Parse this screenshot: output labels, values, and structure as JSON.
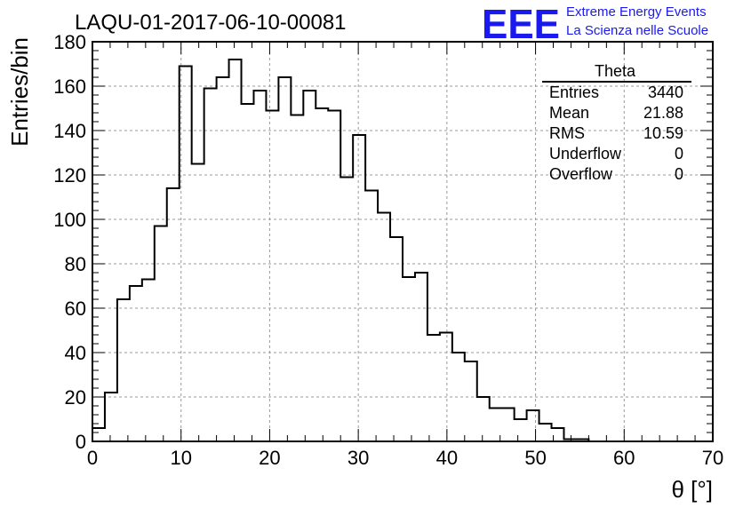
{
  "header": {
    "run_title": "LAQU-01-2017-06-10-00081",
    "logo_letters": "EEE",
    "logo_line1": "Extreme Energy Events",
    "logo_line2": "La Scienza nelle Scuole"
  },
  "stats_box": {
    "title": "Theta",
    "rows": [
      {
        "label": "Entries",
        "value": "3440"
      },
      {
        "label": "Mean",
        "value": "21.88"
      },
      {
        "label": "RMS",
        "value": "10.59"
      },
      {
        "label": "Underflow",
        "value": "0"
      },
      {
        "label": "Overflow",
        "value": "0"
      }
    ]
  },
  "colors": {
    "logo": "#1a1aee",
    "histogram_line": "#000000",
    "grid": "#9a9a9a"
  },
  "chart_data": {
    "type": "bar",
    "subtype": "step-histogram",
    "xlabel": "θ [°]",
    "ylabel": "Entries/bin",
    "xlim": [
      0,
      70
    ],
    "ylim": [
      0,
      180
    ],
    "x_ticks": [
      0,
      10,
      20,
      30,
      40,
      50,
      60,
      70
    ],
    "y_ticks": [
      0,
      20,
      40,
      60,
      80,
      100,
      120,
      140,
      160,
      180
    ],
    "grid": true,
    "legend": "none",
    "bin_width": 1.4,
    "bin_edges_start": 0,
    "values": [
      6,
      22,
      64,
      70,
      73,
      97,
      114,
      169,
      125,
      159,
      164,
      172,
      152,
      158,
      149,
      164,
      147,
      158,
      150,
      149,
      119,
      138,
      113,
      103,
      92,
      74,
      76,
      48,
      49,
      40,
      36,
      20,
      15,
      15,
      10,
      14,
      8,
      6,
      1,
      1,
      0,
      0,
      0,
      0,
      0,
      0,
      0,
      0,
      0,
      0
    ]
  }
}
